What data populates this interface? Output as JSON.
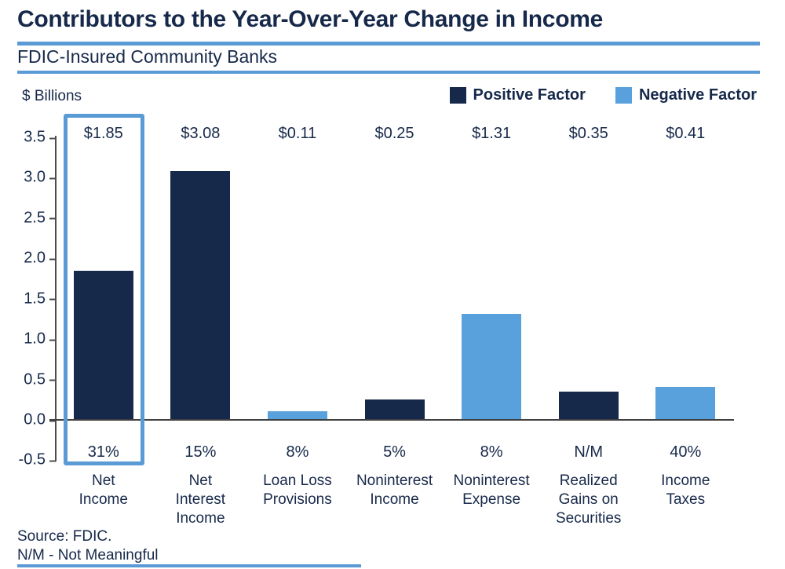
{
  "page": {
    "title": "Contributors to the Year-Over-Year Change in Income",
    "subtitle": "FDIC-Insured Community Banks",
    "source_line1": "Source: FDIC.",
    "source_line2": "N/M - Not Meaningful"
  },
  "colors": {
    "positive": "#17294A",
    "negative": "#58A1DC",
    "accent_rule": "#5B9BD5",
    "text": "#17294A"
  },
  "legend": {
    "positive_label": "Positive Factor",
    "negative_label": "Negative Factor"
  },
  "chart_data": {
    "type": "bar",
    "title": "Contributors to the Year-Over-Year Change in Income",
    "subtitle": "FDIC-Insured Community Banks",
    "ylabel": "$ Billions",
    "xlabel": "",
    "ylim": [
      -0.5,
      3.5
    ],
    "ytick_step": 0.5,
    "yticks": [
      "3.5",
      "3.0",
      "2.5",
      "2.0",
      "1.5",
      "1.0",
      "0.5",
      "0.0",
      "-0.5"
    ],
    "grid": false,
    "legend_position": "top-right",
    "categories": [
      "Net Income",
      "Net Interest Income",
      "Loan Loss Provisions",
      "Noninterest Income",
      "Noninterest Expense",
      "Realized Gains on Securities",
      "Income Taxes"
    ],
    "bars": [
      {
        "category_label": "Net\nIncome",
        "value": 1.85,
        "value_label": "$1.85",
        "pct_label": "31%",
        "factor": "positive",
        "highlighted": true
      },
      {
        "category_label": "Net\nInterest\nIncome",
        "value": 3.08,
        "value_label": "$3.08",
        "pct_label": "15%",
        "factor": "positive",
        "highlighted": false
      },
      {
        "category_label": "Loan Loss\nProvisions",
        "value": 0.11,
        "value_label": "$0.11",
        "pct_label": "8%",
        "factor": "negative",
        "highlighted": false
      },
      {
        "category_label": "Noninterest\nIncome",
        "value": 0.25,
        "value_label": "$0.25",
        "pct_label": "5%",
        "factor": "positive",
        "highlighted": false
      },
      {
        "category_label": "Noninterest\nExpense",
        "value": 1.31,
        "value_label": "$1.31",
        "pct_label": "8%",
        "factor": "negative",
        "highlighted": false
      },
      {
        "category_label": "Realized\nGains on\nSecurities",
        "value": 0.35,
        "value_label": "$0.35",
        "pct_label": "N/M",
        "factor": "positive",
        "highlighted": false
      },
      {
        "category_label": "Income\nTaxes",
        "value": 0.41,
        "value_label": "$0.41",
        "pct_label": "40%",
        "factor": "negative",
        "highlighted": false
      }
    ]
  }
}
